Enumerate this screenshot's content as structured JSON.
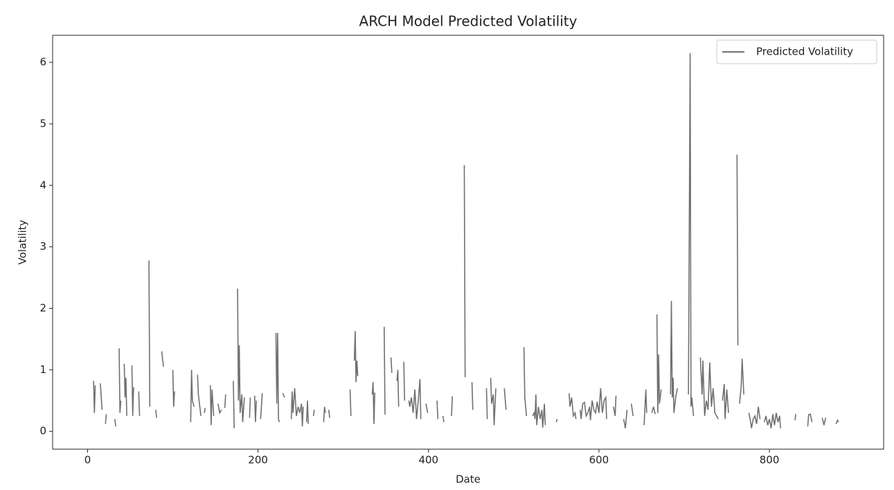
{
  "chart_data": {
    "type": "line",
    "title": "ARCH Model Predicted Volatility",
    "x_label": "Date",
    "y_label": "Volatility",
    "xlim": [
      -41,
      934
    ],
    "ylim": [
      -0.29,
      6.44
    ],
    "xticks": [
      0,
      200,
      400,
      600,
      800
    ],
    "yticks": [
      0,
      1,
      2,
      3,
      4,
      5,
      6
    ],
    "grid": false,
    "legend": "upper right",
    "x": [
      7,
      8,
      9,
      10,
      15,
      17,
      18,
      21,
      22,
      23,
      32,
      33,
      34,
      37,
      38,
      39,
      40,
      43,
      44,
      45,
      46,
      47,
      52,
      53,
      54,
      55,
      60,
      61,
      62,
      72,
      73,
      74,
      80,
      81,
      82,
      87,
      89,
      90,
      100,
      101,
      102,
      103,
      121,
      122,
      123,
      125,
      126,
      129,
      130,
      133,
      134,
      137,
      138,
      139,
      144,
      145,
      146,
      148,
      149,
      153,
      155,
      157,
      158,
      161,
      162,
      163,
      171,
      172,
      173,
      176,
      177,
      178,
      179,
      181,
      182,
      184,
      185,
      190,
      191,
      192,
      196,
      197,
      198,
      199,
      203,
      205,
      206,
      221,
      222,
      223,
      224,
      225,
      226,
      229,
      231,
      232,
      239,
      240,
      241,
      243,
      245,
      247,
      249,
      251,
      252,
      253,
      254,
      257,
      258,
      259,
      260,
      265,
      266,
      267,
      277,
      278,
      279,
      280,
      283,
      284,
      285,
      308,
      309,
      310,
      313,
      314,
      315,
      316,
      317,
      318,
      334,
      335,
      336,
      337,
      338,
      348,
      349,
      350,
      356,
      357,
      358,
      363,
      364,
      365,
      366,
      371,
      372,
      373,
      377,
      378,
      380,
      382,
      384,
      386,
      388,
      390,
      391,
      392,
      397,
      399,
      400,
      410,
      411,
      412,
      417,
      418,
      419,
      427,
      428,
      429,
      442,
      443,
      444,
      451,
      452,
      453,
      468,
      469,
      470,
      473,
      474,
      476,
      477,
      479,
      480,
      489,
      491,
      492,
      512,
      513,
      515,
      516,
      522,
      524,
      525,
      526,
      527,
      529,
      531,
      533,
      534,
      536,
      537,
      538,
      550,
      551,
      552,
      565,
      566,
      568,
      570,
      572,
      573,
      574,
      578,
      579,
      581,
      583,
      585,
      587,
      589,
      590,
      592,
      594,
      596,
      598,
      600,
      602,
      604,
      606,
      608,
      609,
      610,
      617,
      619,
      620,
      621,
      629,
      631,
      633,
      634,
      638,
      640,
      641,
      653,
      655,
      656,
      657,
      662,
      664,
      666,
      667,
      668,
      669,
      670,
      671,
      673,
      674,
      684,
      685,
      686,
      687,
      688,
      690,
      692,
      693,
      705,
      707,
      708,
      709,
      711,
      712,
      719,
      721,
      722,
      724,
      726,
      728,
      730,
      732,
      734,
      736,
      738,
      740,
      741,
      745,
      747,
      748,
      750,
      752,
      753,
      762,
      763,
      764,
      765,
      767,
      768,
      770,
      771,
      776,
      778,
      779,
      781,
      783,
      785,
      787,
      789,
      790,
      794,
      796,
      798,
      800,
      802,
      804,
      806,
      808,
      810,
      812,
      813,
      814,
      830,
      831,
      832,
      845,
      846,
      848,
      850,
      851,
      862,
      864,
      866,
      867,
      878,
      880,
      881
    ],
    "series": [
      {
        "name": "Predicted Volatility",
        "color": "#707070",
        "values": [
          0.82,
          0.3,
          0.75,
          null,
          0.78,
          0.35,
          null,
          0.12,
          0.28,
          null,
          0.2,
          0.08,
          null,
          1.35,
          0.3,
          0.5,
          null,
          1.1,
          0.55,
          0.87,
          0.25,
          null,
          1.07,
          0.25,
          0.72,
          null,
          0.65,
          0.25,
          null,
          2.78,
          0.4,
          null,
          0.35,
          0.22,
          null,
          1.3,
          1.05,
          null,
          1.0,
          0.4,
          0.65,
          null,
          0.15,
          1.0,
          0.5,
          0.4,
          null,
          0.92,
          0.6,
          0.25,
          null,
          0.3,
          0.38,
          null,
          0.75,
          0.1,
          0.68,
          0.25,
          null,
          0.45,
          0.3,
          0.35,
          null,
          0.38,
          0.6,
          null,
          0.82,
          0.05,
          null,
          2.32,
          0.5,
          1.4,
          0.3,
          0.6,
          0.15,
          0.55,
          null,
          0.22,
          0.55,
          null,
          0.58,
          0.15,
          0.5,
          null,
          0.2,
          0.62,
          null,
          1.6,
          0.45,
          1.6,
          0.2,
          0.15,
          null,
          0.62,
          0.55,
          null,
          0.2,
          0.65,
          0.3,
          0.7,
          0.25,
          0.4,
          0.3,
          0.45,
          0.08,
          0.4,
          null,
          0.15,
          0.5,
          0.12,
          null,
          0.25,
          0.35,
          null,
          0.15,
          0.4,
          0.3,
          null,
          0.35,
          0.22,
          null,
          0.68,
          0.25,
          null,
          1.15,
          1.63,
          0.8,
          1.15,
          0.9,
          null,
          0.6,
          0.8,
          0.12,
          0.63,
          null,
          1.7,
          0.27,
          null,
          1.2,
          0.95,
          null,
          0.82,
          1.0,
          0.4,
          null,
          1.13,
          0.5,
          null,
          0.5,
          0.4,
          0.55,
          0.3,
          0.68,
          0.2,
          0.5,
          0.85,
          0.2,
          null,
          0.45,
          0.3,
          null,
          0.5,
          0.2,
          null,
          0.25,
          0.15,
          null,
          0.25,
          0.57,
          null,
          4.33,
          0.88,
          null,
          0.8,
          0.35,
          null,
          0.7,
          0.2,
          null,
          0.87,
          0.45,
          0.6,
          0.1,
          0.7,
          null,
          0.7,
          0.35,
          null,
          1.37,
          0.55,
          0.25,
          null,
          0.25,
          0.3,
          0.2,
          0.6,
          0.1,
          0.4,
          0.2,
          0.35,
          0.06,
          0.45,
          0.1,
          null,
          0.15,
          0.2,
          null,
          0.62,
          0.4,
          0.55,
          0.25,
          0.3,
          0.2,
          null,
          0.35,
          0.2,
          0.45,
          0.47,
          0.25,
          0.3,
          0.4,
          0.18,
          0.5,
          0.35,
          0.3,
          0.48,
          0.3,
          0.7,
          0.3,
          0.5,
          0.55,
          0.2,
          null,
          0.4,
          0.25,
          0.58,
          null,
          0.2,
          0.05,
          0.35,
          null,
          0.45,
          0.25,
          null,
          0.1,
          0.68,
          0.3,
          null,
          0.3,
          0.4,
          0.28,
          null,
          1.9,
          0.3,
          1.25,
          0.45,
          0.68,
          null,
          0.6,
          2.12,
          0.55,
          0.87,
          0.3,
          0.55,
          0.7,
          null,
          0.6,
          6.15,
          0.4,
          0.55,
          0.25,
          null,
          1.2,
          0.6,
          1.15,
          0.25,
          0.5,
          0.35,
          1.12,
          0.4,
          0.7,
          0.3,
          0.25,
          0.2,
          null,
          0.5,
          0.77,
          0.2,
          0.68,
          0.3,
          null,
          4.5,
          1.4,
          null,
          0.45,
          0.75,
          1.18,
          0.6,
          null,
          0.3,
          0.15,
          0.05,
          0.2,
          0.25,
          0.12,
          0.4,
          0.2,
          null,
          0.15,
          0.25,
          0.1,
          0.2,
          0.05,
          0.28,
          0.1,
          0.3,
          0.15,
          0.25,
          0.05,
          null,
          0.18,
          0.28,
          null,
          0.08,
          0.27,
          0.28,
          0.15,
          null,
          0.22,
          0.1,
          0.22,
          null,
          0.12,
          0.18,
          0.15
        ]
      }
    ]
  }
}
